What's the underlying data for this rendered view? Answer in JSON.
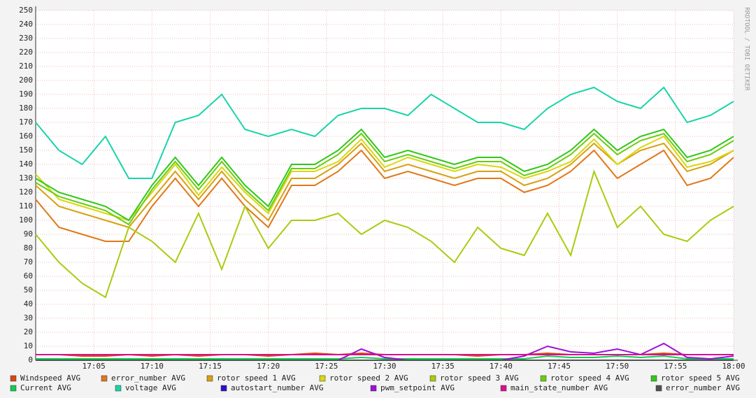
{
  "chart_data": {
    "type": "line",
    "watermark": "RRDTOOL / TOBI OETIKER",
    "x": [
      "17:00",
      "17:02",
      "17:04",
      "17:06",
      "17:08",
      "17:10",
      "17:12",
      "17:14",
      "17:16",
      "17:18",
      "17:20",
      "17:22",
      "17:24",
      "17:26",
      "17:28",
      "17:30",
      "17:32",
      "17:34",
      "17:36",
      "17:38",
      "17:40",
      "17:42",
      "17:44",
      "17:46",
      "17:48",
      "17:50",
      "17:52",
      "17:54",
      "17:56",
      "17:58",
      "18:00"
    ],
    "xlim": [
      "17:00",
      "18:00"
    ],
    "xticks": [
      "17:05",
      "17:10",
      "17:15",
      "17:20",
      "17:25",
      "17:30",
      "17:35",
      "17:40",
      "17:45",
      "17:50",
      "17:55",
      "18:00"
    ],
    "ylim": [
      0,
      250
    ],
    "yticks": [
      0,
      10,
      20,
      30,
      40,
      50,
      60,
      70,
      80,
      90,
      100,
      110,
      120,
      130,
      140,
      150,
      160,
      170,
      180,
      190,
      200,
      210,
      220,
      230,
      240,
      250
    ],
    "grid": true,
    "series": [
      {
        "name": "Windspeed AVG",
        "color": "#dd4411",
        "values": [
          4,
          4,
          3,
          3,
          4,
          3,
          4,
          3,
          4,
          4,
          3,
          4,
          5,
          4,
          5,
          4,
          4,
          4,
          4,
          3,
          4,
          4,
          5,
          4,
          4,
          4,
          4,
          5,
          4,
          4,
          4
        ]
      },
      {
        "name": "error_number AVG",
        "color": "#e07818",
        "values": [
          115,
          95,
          90,
          85,
          85,
          110,
          130,
          110,
          130,
          110,
          95,
          125,
          125,
          135,
          150,
          130,
          135,
          130,
          125,
          130,
          130,
          120,
          125,
          135,
          150,
          130,
          140,
          150,
          125,
          130,
          145
        ]
      },
      {
        "name": "rotor speed 1 AVG",
        "color": "#d8a010",
        "values": [
          125,
          110,
          105,
          100,
          95,
          115,
          135,
          115,
          135,
          115,
          100,
          130,
          130,
          140,
          155,
          135,
          140,
          135,
          130,
          135,
          135,
          125,
          130,
          140,
          155,
          140,
          150,
          155,
          135,
          140,
          150
        ]
      },
      {
        "name": "rotor speed 2 AVG",
        "color": "#d8d810",
        "values": [
          133,
          115,
          110,
          105,
          100,
          120,
          140,
          118,
          138,
          120,
          105,
          135,
          135,
          142,
          158,
          138,
          145,
          140,
          135,
          140,
          138,
          130,
          135,
          142,
          158,
          140,
          152,
          160,
          138,
          142,
          150
        ]
      },
      {
        "name": "rotor speed 3 AVG",
        "color": "#a8cc10",
        "values": [
          90,
          70,
          55,
          45,
          95,
          85,
          70,
          105,
          65,
          110,
          80,
          100,
          100,
          105,
          90,
          100,
          95,
          85,
          70,
          95,
          80,
          75,
          105,
          75,
          135,
          95,
          110,
          90,
          85,
          100,
          110
        ]
      },
      {
        "name": "rotor speed 4 AVG",
        "color": "#6ccc10",
        "values": [
          127,
          117,
          112,
          107,
          97,
          122,
          142,
          122,
          142,
          122,
          107,
          137,
          137,
          147,
          162,
          142,
          147,
          142,
          137,
          142,
          142,
          132,
          137,
          147,
          162,
          147,
          157,
          162,
          142,
          147,
          157
        ]
      },
      {
        "name": "rotor speed 5 AVG",
        "color": "#30c818",
        "values": [
          130,
          120,
          115,
          110,
          100,
          125,
          145,
          125,
          145,
          125,
          110,
          140,
          140,
          150,
          165,
          145,
          150,
          145,
          140,
          145,
          145,
          135,
          140,
          150,
          165,
          150,
          160,
          165,
          145,
          150,
          160
        ]
      },
      {
        "name": "Current AVG",
        "color": "#10cc50",
        "values": [
          1,
          1,
          1,
          1,
          1,
          1,
          1,
          1,
          1,
          1,
          1,
          1,
          1,
          1,
          2,
          1,
          1,
          1,
          1,
          1,
          1,
          1,
          3,
          2,
          2,
          3,
          2,
          3,
          1,
          1,
          1
        ]
      },
      {
        "name": "voltage AVG",
        "color": "#18d4a8",
        "values": [
          170,
          150,
          140,
          160,
          130,
          130,
          170,
          175,
          190,
          165,
          160,
          165,
          160,
          175,
          180,
          180,
          175,
          190,
          180,
          170,
          170,
          165,
          180,
          190,
          195,
          185,
          180,
          195,
          170,
          175,
          185
        ]
      },
      {
        "name": "autostart_number AVG",
        "color": "#2a10cc",
        "values": [
          0,
          0,
          0,
          0,
          0,
          0,
          0,
          0,
          0,
          0,
          0,
          0,
          0,
          0,
          0,
          0,
          0,
          0,
          0,
          0,
          0,
          0,
          0,
          0,
          0,
          0,
          0,
          0,
          0,
          0,
          0
        ]
      },
      {
        "name": "pwm_setpoint AVG",
        "color": "#9c10d8",
        "values": [
          0,
          0,
          0,
          0,
          0,
          0,
          0,
          0,
          0,
          0,
          0,
          0,
          0,
          0,
          8,
          2,
          0,
          0,
          0,
          0,
          0,
          3,
          10,
          6,
          5,
          8,
          4,
          12,
          2,
          1,
          3
        ]
      },
      {
        "name": "main_state_number AVG",
        "color": "#d81090",
        "values": [
          4,
          4,
          4,
          4,
          4,
          4,
          4,
          4,
          4,
          4,
          4,
          4,
          4,
          4,
          4,
          4,
          4,
          4,
          4,
          4,
          4,
          4,
          4,
          4,
          4,
          4,
          4,
          4,
          4,
          4,
          4
        ]
      },
      {
        "name": "error_number AVG",
        "color": "#505050",
        "values": [
          0,
          0,
          0,
          0,
          0,
          0,
          0,
          0,
          0,
          0,
          0,
          0,
          0,
          0,
          0,
          0,
          0,
          0,
          0,
          0,
          0,
          0,
          0,
          0,
          0,
          0,
          0,
          0,
          0,
          0,
          0
        ]
      }
    ]
  }
}
